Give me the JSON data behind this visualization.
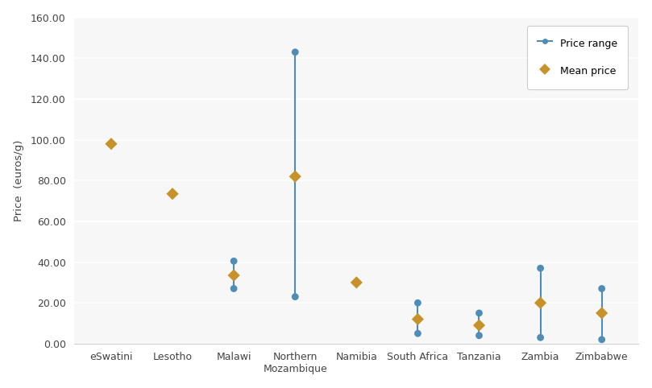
{
  "categories": [
    "eSwatini",
    "Lesotho",
    "Malawi",
    "Northern\nMozambique",
    "Namibia",
    "South Africa",
    "Tanzania",
    "Zambia",
    "Zimbabwe"
  ],
  "price_min": [
    null,
    null,
    27.0,
    23.0,
    null,
    5.0,
    4.0,
    3.0,
    2.0
  ],
  "price_max": [
    null,
    null,
    40.5,
    143.0,
    null,
    20.0,
    15.0,
    37.0,
    27.0
  ],
  "mean_price": [
    98.0,
    73.5,
    33.5,
    82.0,
    30.0,
    12.0,
    9.0,
    20.0,
    15.0
  ],
  "range_color": "#4e8db5",
  "mean_color": "#c8922a",
  "background_color": "#ffffff",
  "plot_bg_color": "#f7f7f7",
  "ylabel": "Price  (euros/g)",
  "ylim": [
    0,
    160
  ],
  "yticks": [
    0,
    20,
    40,
    60,
    80,
    100,
    120,
    140,
    160
  ],
  "ytick_labels": [
    "0.00",
    "20.00",
    "40.00",
    "60.00",
    "80.00",
    "100.00",
    "120.00",
    "140.00",
    "160.00"
  ],
  "legend_price_range_label": "Price range",
  "legend_mean_label": "Mean price",
  "figsize": [
    8.09,
    4.82
  ],
  "dpi": 100
}
